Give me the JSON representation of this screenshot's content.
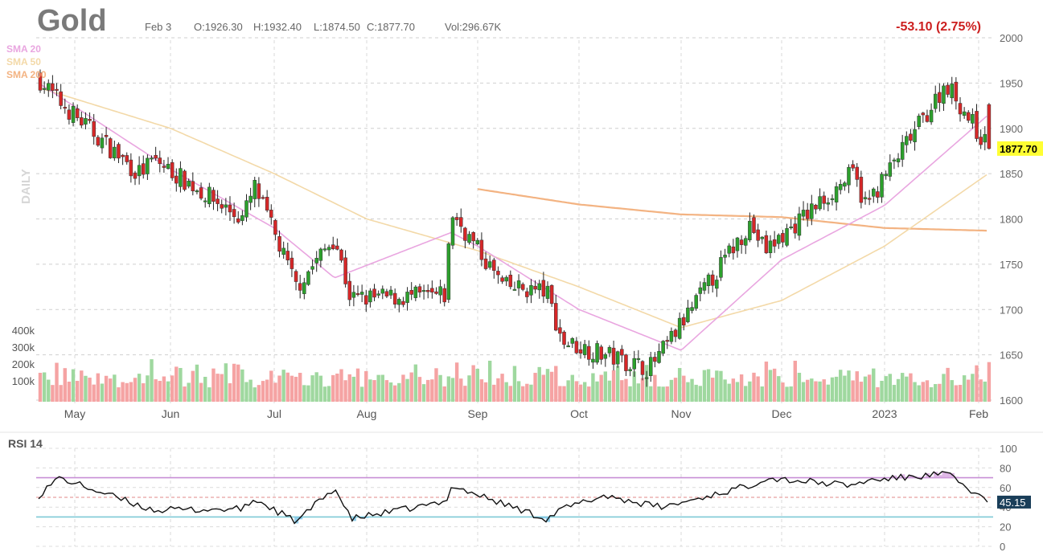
{
  "header": {
    "symbol": "Gold",
    "date": "Feb 3",
    "open": "O:1926.30",
    "high": "H:1932.40",
    "low": "L:1874.50",
    "close": "C:1877.70",
    "volume": "Vol:296.67K",
    "change": "-53.10 (2.75%)",
    "period": "DAILY"
  },
  "colors": {
    "up": "#2ca02c",
    "down": "#d62728",
    "up_volume": "#9fd89f",
    "down_volume": "#f5a3a3",
    "sma20": "#e9a6e0",
    "sma50": "#f3d9a8",
    "sma200": "#f3b382",
    "rsi_line": "#111111",
    "rsi_upper": "#c88fd6",
    "rsi_lower": "#7ec9d6",
    "price_tag": "#ffff33",
    "change": "#cc1f1f"
  },
  "chart_data": [
    {
      "type": "candlestick",
      "title": "Gold",
      "period": "DAILY",
      "ylim": [
        1600,
        2000
      ],
      "y_ticks": [
        "2000",
        "1950",
        "1900",
        "1850",
        "1800",
        "1750",
        "1700",
        "1650",
        "1600"
      ],
      "x_ticks": [
        "May",
        "Jun",
        "Jul",
        "Aug",
        "Sep",
        "Oct",
        "Nov",
        "Dec",
        "2023",
        "Feb"
      ],
      "last_price": "1877.70",
      "legend": [
        "SMA 20",
        "SMA 50",
        "SMA 200"
      ],
      "close_path": [
        {
          "month": "May",
          "close": 1955
        },
        {
          "month": "May",
          "close": 1865
        },
        {
          "month": "Jun",
          "close": 1850
        },
        {
          "month": "Jun",
          "close": 1835
        },
        {
          "month": "Jul",
          "close": 1800
        },
        {
          "month": "Jul",
          "close": 1725
        },
        {
          "month": "Jul",
          "close": 1712
        },
        {
          "month": "Aug",
          "close": 1780
        },
        {
          "month": "Aug",
          "close": 1808
        },
        {
          "month": "Sep",
          "close": 1715
        },
        {
          "month": "Sep",
          "close": 1725
        },
        {
          "month": "Sep",
          "close": 1665
        },
        {
          "month": "Oct",
          "close": 1720
        },
        {
          "month": "Oct",
          "close": 1655
        },
        {
          "month": "Nov",
          "close": 1635
        },
        {
          "month": "Nov",
          "close": 1765
        },
        {
          "month": "Dec",
          "close": 1795
        },
        {
          "month": "Dec",
          "close": 1815
        },
        {
          "month": "2023",
          "close": 1850
        },
        {
          "month": "2023",
          "close": 1930
        },
        {
          "month": "Feb",
          "close": 1950
        },
        {
          "month": "Feb",
          "close": 1877.7
        }
      ],
      "sma20_path": [
        {
          "month": "May",
          "value": 1950
        },
        {
          "month": "Jun",
          "value": 1855
        },
        {
          "month": "Jul",
          "value": 1790
        },
        {
          "month": "Aug",
          "value": 1735
        },
        {
          "month": "Aug",
          "value": 1785
        },
        {
          "month": "Sep",
          "value": 1770
        },
        {
          "month": "Oct",
          "value": 1700
        },
        {
          "month": "Nov",
          "value": 1655
        },
        {
          "month": "Dec",
          "value": 1755
        },
        {
          "month": "2023",
          "value": 1815
        },
        {
          "month": "Feb",
          "value": 1915
        }
      ],
      "sma50_path": [
        {
          "month": "May",
          "value": 1945
        },
        {
          "month": "Jun",
          "value": 1900
        },
        {
          "month": "Jul",
          "value": 1850
        },
        {
          "month": "Aug",
          "value": 1800
        },
        {
          "month": "Sep",
          "value": 1765
        },
        {
          "month": "Oct",
          "value": 1725
        },
        {
          "month": "Nov",
          "value": 1680
        },
        {
          "month": "Dec",
          "value": 1710
        },
        {
          "month": "2023",
          "value": 1770
        },
        {
          "month": "Feb",
          "value": 1850
        }
      ],
      "sma200_path": [
        {
          "month": "Sep",
          "value": 1833
        },
        {
          "month": "Oct",
          "value": 1816
        },
        {
          "month": "Nov",
          "value": 1805
        },
        {
          "month": "Dec",
          "value": 1802
        },
        {
          "month": "2023",
          "value": 1790
        },
        {
          "month": "Feb",
          "value": 1787
        }
      ]
    },
    {
      "type": "bar",
      "name": "volume",
      "ylim": [
        0,
        400
      ],
      "y_ticks": [
        "400k",
        "300k",
        "200k",
        "100k"
      ],
      "approx_range_k": [
        100,
        300
      ]
    },
    {
      "type": "line",
      "title": "RSI 14",
      "ylim": [
        0,
        100
      ],
      "y_ticks": [
        "100",
        "80",
        "60",
        "40",
        "20",
        "0"
      ],
      "overbought": 70,
      "oversold": 30,
      "midline": 50,
      "last_value": "45.15",
      "path": [
        {
          "month": "May",
          "value": 52
        },
        {
          "month": "May",
          "value": 37
        },
        {
          "month": "Jun",
          "value": 42
        },
        {
          "month": "Jun",
          "value": 48
        },
        {
          "month": "Jul",
          "value": 38
        },
        {
          "month": "Jul",
          "value": 25
        },
        {
          "month": "Jul",
          "value": 28
        },
        {
          "month": "Aug",
          "value": 60
        },
        {
          "month": "Aug",
          "value": 62
        },
        {
          "month": "Sep",
          "value": 45
        },
        {
          "month": "Sep",
          "value": 38
        },
        {
          "month": "Oct",
          "value": 28
        },
        {
          "month": "Oct",
          "value": 52
        },
        {
          "month": "Oct",
          "value": 40
        },
        {
          "month": "Nov",
          "value": 42
        },
        {
          "month": "Nov",
          "value": 70
        },
        {
          "month": "Dec",
          "value": 62
        },
        {
          "month": "Dec",
          "value": 67
        },
        {
          "month": "2023",
          "value": 62
        },
        {
          "month": "2023",
          "value": 70
        },
        {
          "month": "Feb",
          "value": 74
        },
        {
          "month": "Feb",
          "value": 45.15
        }
      ]
    }
  ]
}
